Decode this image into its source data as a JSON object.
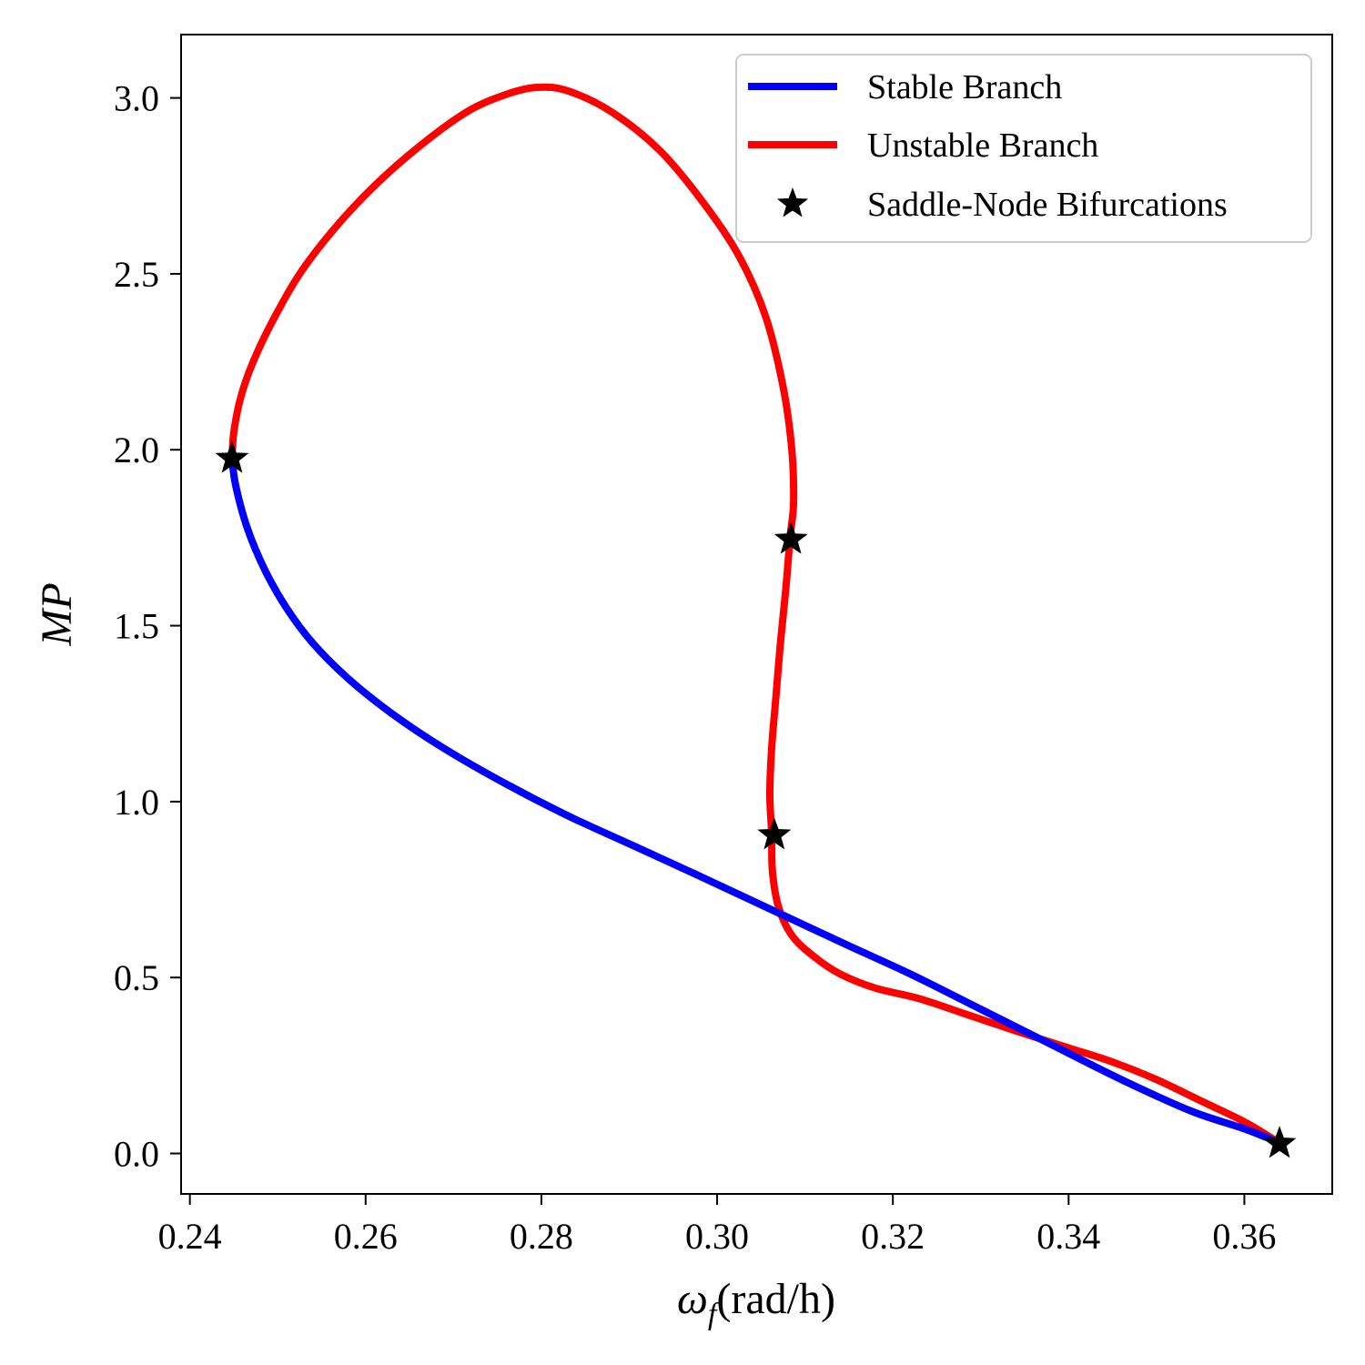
{
  "chart_data": {
    "type": "line",
    "xlabel": "ωf(rad/h)",
    "xlabel_main": "ω",
    "xlabel_sub": "f",
    "xlabel_unit": "(rad/h)",
    "ylabel": "MP",
    "xlim": [
      0.239,
      0.37
    ],
    "ylim": [
      -0.115,
      3.18
    ],
    "x_ticks": [
      {
        "value": 0.24,
        "label": "0.24"
      },
      {
        "value": 0.26,
        "label": "0.26"
      },
      {
        "value": 0.28,
        "label": "0.28"
      },
      {
        "value": 0.3,
        "label": "0.30"
      },
      {
        "value": 0.32,
        "label": "0.32"
      },
      {
        "value": 0.34,
        "label": "0.34"
      },
      {
        "value": 0.36,
        "label": "0.36"
      }
    ],
    "y_ticks": [
      {
        "value": 0.0,
        "label": "0.0"
      },
      {
        "value": 0.5,
        "label": "0.5"
      },
      {
        "value": 1.0,
        "label": "1.0"
      },
      {
        "value": 1.5,
        "label": "1.5"
      },
      {
        "value": 2.0,
        "label": "2.0"
      },
      {
        "value": 2.5,
        "label": "2.5"
      },
      {
        "value": 3.0,
        "label": "3.0"
      }
    ],
    "grid": false,
    "legend": "top-right",
    "series": [
      {
        "name": "Stable Branch",
        "color": "#0000ff",
        "points": [
          [
            0.2448,
            1.975
          ],
          [
            0.2452,
            1.9
          ],
          [
            0.2465,
            1.78
          ],
          [
            0.2485,
            1.66
          ],
          [
            0.251,
            1.55
          ],
          [
            0.254,
            1.45
          ],
          [
            0.258,
            1.35
          ],
          [
            0.263,
            1.25
          ],
          [
            0.269,
            1.15
          ],
          [
            0.276,
            1.05
          ],
          [
            0.283,
            0.96
          ],
          [
            0.29,
            0.88
          ],
          [
            0.297,
            0.8
          ],
          [
            0.303,
            0.73
          ],
          [
            0.309,
            0.66
          ],
          [
            0.315,
            0.59
          ],
          [
            0.322,
            0.51
          ],
          [
            0.33,
            0.41
          ],
          [
            0.338,
            0.31
          ],
          [
            0.346,
            0.21
          ],
          [
            0.354,
            0.12
          ],
          [
            0.36,
            0.07
          ],
          [
            0.364,
            0.03
          ]
        ]
      },
      {
        "name": "Unstable Branch",
        "color": "#ff0000",
        "points": [
          [
            0.2448,
            1.975
          ],
          [
            0.245,
            2.05
          ],
          [
            0.2458,
            2.15
          ],
          [
            0.2472,
            2.25
          ],
          [
            0.2495,
            2.37
          ],
          [
            0.2525,
            2.5
          ],
          [
            0.2565,
            2.63
          ],
          [
            0.261,
            2.75
          ],
          [
            0.266,
            2.86
          ],
          [
            0.2715,
            2.96
          ],
          [
            0.276,
            3.01
          ],
          [
            0.2795,
            3.03
          ],
          [
            0.283,
            3.02
          ],
          [
            0.288,
            2.96
          ],
          [
            0.2935,
            2.85
          ],
          [
            0.2985,
            2.7
          ],
          [
            0.3025,
            2.55
          ],
          [
            0.3055,
            2.38
          ],
          [
            0.3075,
            2.18
          ],
          [
            0.3085,
            2.0
          ],
          [
            0.3087,
            1.85
          ],
          [
            0.3083,
            1.75
          ],
          [
            0.3078,
            1.6
          ],
          [
            0.3072,
            1.45
          ],
          [
            0.3067,
            1.3
          ],
          [
            0.3062,
            1.15
          ],
          [
            0.306,
            1.02
          ],
          [
            0.3062,
            0.91
          ],
          [
            0.3063,
            0.8
          ],
          [
            0.307,
            0.7
          ],
          [
            0.3085,
            0.62
          ],
          [
            0.311,
            0.56
          ],
          [
            0.314,
            0.51
          ],
          [
            0.318,
            0.47
          ],
          [
            0.323,
            0.44
          ],
          [
            0.329,
            0.39
          ],
          [
            0.335,
            0.34
          ],
          [
            0.34,
            0.3
          ],
          [
            0.345,
            0.26
          ],
          [
            0.35,
            0.21
          ],
          [
            0.355,
            0.15
          ],
          [
            0.36,
            0.09
          ],
          [
            0.364,
            0.03
          ]
        ]
      }
    ],
    "markers": {
      "name": "Saddle-Node Bifurcations",
      "color": "#000000",
      "points": [
        [
          0.2448,
          1.975
        ],
        [
          0.3084,
          1.745
        ],
        [
          0.3065,
          0.905
        ],
        [
          0.364,
          0.028
        ]
      ]
    }
  }
}
